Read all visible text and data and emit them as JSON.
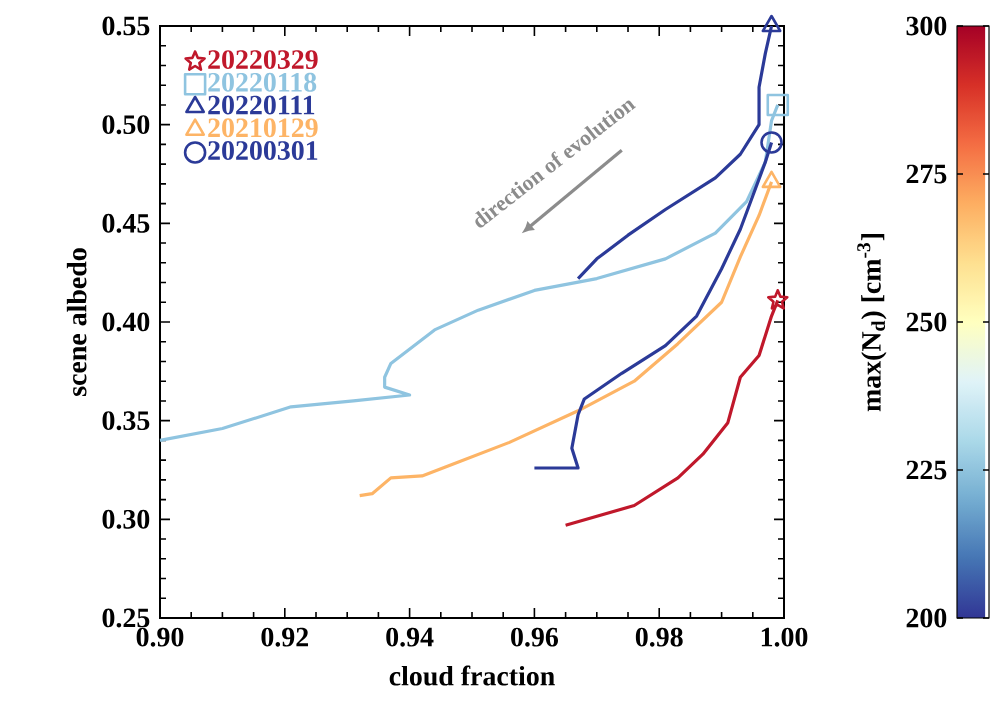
{
  "chart_data": {
    "type": "line",
    "xlabel": "cloud fraction",
    "ylabel": "scene albedo",
    "clabel": "max(N$_{d}$) [cm$^{-3}$]",
    "xlim": [
      0.9,
      1.0
    ],
    "ylim": [
      0.25,
      0.55
    ],
    "xticks": [
      {
        "value": 0.9,
        "label": "0.90"
      },
      0.92,
      0.94,
      0.96,
      0.98,
      {
        "value": 1.0,
        "label": "1.00"
      }
    ],
    "yticks": [
      0.25,
      {
        "value": 0.3,
        "label": "0.30"
      },
      0.35,
      {
        "value": 0.4,
        "label": "0.40"
      },
      0.45,
      {
        "value": 0.5,
        "label": "0.50"
      },
      0.55
    ],
    "clim": [
      200,
      300
    ],
    "cticks": [
      200,
      225,
      250,
      275,
      300
    ],
    "legend": "top left",
    "annotations": [
      "direction of evolution"
    ],
    "series": [
      {
        "color": "#c0182b",
        "x": [
          0.965,
          0.976,
          0.983,
          0.987,
          0.991,
          0.993,
          0.996,
          0.998,
          0.999
        ],
        "values": [
          0.297,
          0.307,
          0.321,
          0.333,
          0.349,
          0.372,
          0.383,
          0.403,
          0.411
        ]
      },
      {
        "color": "#8fc4e0",
        "x": [
          0.9,
          0.91,
          0.921,
          0.931,
          0.94,
          0.936,
          0.936,
          0.937,
          0.944,
          0.951,
          0.96,
          0.97,
          0.981,
          0.989,
          0.994,
          0.997,
          0.998,
          0.999
        ],
        "values": [
          0.34,
          0.346,
          0.357,
          0.36,
          0.363,
          0.367,
          0.372,
          0.379,
          0.396,
          0.406,
          0.416,
          0.422,
          0.432,
          0.445,
          0.461,
          0.481,
          0.502,
          0.51
        ]
      },
      {
        "color": "#2b3a98",
        "x": [
          0.967,
          0.97,
          0.975,
          0.981,
          0.989,
          0.993,
          0.996,
          0.996,
          0.997,
          0.998
        ],
        "values": [
          0.422,
          0.432,
          0.444,
          0.457,
          0.473,
          0.485,
          0.5,
          0.519,
          0.536,
          0.55
        ]
      },
      {
        "color": "#fdb466",
        "x": [
          0.932,
          0.934,
          0.937,
          0.942,
          0.947,
          0.956,
          0.967,
          0.976,
          0.983,
          0.99,
          0.993,
          0.996,
          0.998
        ],
        "values": [
          0.312,
          0.313,
          0.321,
          0.322,
          0.328,
          0.339,
          0.355,
          0.37,
          0.389,
          0.41,
          0.433,
          0.454,
          0.471
        ]
      },
      {
        "color": "#2b3a98",
        "x": [
          0.96,
          0.967,
          0.966,
          0.967,
          0.968,
          0.974,
          0.981,
          0.986,
          0.99,
          0.993,
          0.995,
          0.997,
          0.998
        ],
        "values": [
          0.326,
          0.326,
          0.336,
          0.353,
          0.361,
          0.374,
          0.388,
          0.403,
          0.427,
          0.447,
          0.464,
          0.481,
          0.491
        ]
      },
      {
        "name": "20220329",
        "type": "scatter",
        "color": "#c0182b",
        "marker": "star",
        "x": [
          0.999
        ],
        "values": [
          0.411
        ]
      },
      {
        "name": "20220118",
        "type": "scatter",
        "color": "#8fc4e0",
        "marker": "square",
        "x": [
          0.999
        ],
        "values": [
          0.51
        ]
      },
      {
        "name": "20220111",
        "type": "scatter",
        "color": "#2b3a98",
        "marker": "triangle",
        "x": [
          0.998
        ],
        "values": [
          0.55
        ]
      },
      {
        "name": "20210129",
        "type": "scatter",
        "color": "#fdb466",
        "marker": "triangle",
        "x": [
          0.998
        ],
        "values": [
          0.471
        ]
      },
      {
        "name": "20200301",
        "type": "scatter",
        "color": "#2b3a98",
        "marker": "circle",
        "x": [
          0.998
        ],
        "values": [
          0.491
        ]
      }
    ]
  }
}
